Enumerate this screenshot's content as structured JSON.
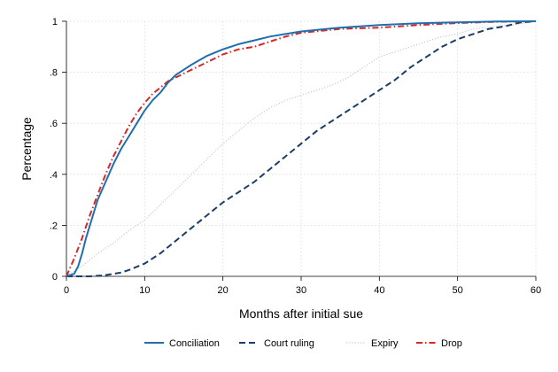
{
  "chart_data": {
    "type": "line",
    "title": "",
    "xlabel": "Months after initial sue",
    "ylabel": "Percentage",
    "xlim": [
      0,
      60
    ],
    "ylim": [
      0,
      1
    ],
    "xticks": [
      0,
      10,
      20,
      30,
      40,
      50,
      60
    ],
    "xtick_labels": [
      "0",
      "10",
      "20",
      "30",
      "40",
      "50",
      "60"
    ],
    "yticks": [
      0,
      0.2,
      0.4,
      0.6,
      0.8,
      1
    ],
    "ytick_labels": [
      "0",
      ".2",
      ".4",
      ".6",
      ".8",
      "1"
    ],
    "grid": true,
    "legend_position": "bottom",
    "series": [
      {
        "name": "Conciliation",
        "color": "#1f6fad",
        "dash": "solid",
        "x": [
          0,
          1,
          1.5,
          2,
          2.5,
          3,
          3.5,
          4,
          5,
          6,
          7,
          8,
          9,
          10,
          11,
          12,
          13,
          14,
          15,
          16,
          18,
          20,
          22,
          24,
          26,
          28,
          30,
          35,
          40,
          45,
          50,
          55,
          60
        ],
        "y": [
          0,
          0.01,
          0.04,
          0.09,
          0.15,
          0.2,
          0.25,
          0.3,
          0.37,
          0.44,
          0.5,
          0.55,
          0.6,
          0.65,
          0.69,
          0.72,
          0.76,
          0.79,
          0.81,
          0.83,
          0.865,
          0.89,
          0.91,
          0.925,
          0.94,
          0.95,
          0.96,
          0.975,
          0.985,
          0.992,
          0.996,
          0.999,
          1.0
        ]
      },
      {
        "name": "Court ruling",
        "color": "#1c3d66",
        "dash": "long-dash",
        "x": [
          0,
          3,
          5,
          7,
          8,
          10,
          12,
          14,
          16,
          18,
          20,
          22,
          24,
          26,
          28,
          30,
          32,
          34,
          36,
          38,
          40,
          42,
          44,
          46,
          48,
          50,
          52,
          54,
          56,
          58,
          60
        ],
        "y": [
          0,
          0.0,
          0.005,
          0.015,
          0.025,
          0.05,
          0.09,
          0.14,
          0.19,
          0.24,
          0.29,
          0.33,
          0.37,
          0.42,
          0.47,
          0.52,
          0.57,
          0.61,
          0.65,
          0.69,
          0.73,
          0.77,
          0.82,
          0.86,
          0.9,
          0.93,
          0.95,
          0.97,
          0.98,
          0.995,
          1.0
        ]
      },
      {
        "name": "Expiry",
        "color": "#c8c8c8",
        "dash": "dotted",
        "x": [
          0,
          2,
          4,
          6,
          8,
          10,
          12,
          14,
          16,
          18,
          20,
          22,
          24,
          26,
          28,
          30,
          32,
          34,
          36,
          38,
          40,
          42,
          44,
          46,
          48,
          50,
          52,
          55,
          58,
          60
        ],
        "y": [
          0,
          0.04,
          0.09,
          0.13,
          0.18,
          0.22,
          0.28,
          0.34,
          0.4,
          0.46,
          0.52,
          0.57,
          0.62,
          0.66,
          0.69,
          0.71,
          0.73,
          0.75,
          0.78,
          0.82,
          0.86,
          0.88,
          0.9,
          0.92,
          0.94,
          0.95,
          0.97,
          0.98,
          0.99,
          1.0
        ]
      },
      {
        "name": "Drop",
        "color": "#d62728",
        "dash": "dash-dot",
        "x": [
          0,
          1,
          2,
          3,
          4,
          5,
          6,
          7,
          8,
          9,
          10,
          11,
          12,
          13,
          14,
          16,
          18,
          20,
          22,
          24,
          26,
          28,
          30,
          35,
          40,
          45,
          50,
          55,
          60
        ],
        "y": [
          0,
          0.07,
          0.15,
          0.24,
          0.32,
          0.4,
          0.47,
          0.53,
          0.59,
          0.64,
          0.68,
          0.715,
          0.74,
          0.765,
          0.78,
          0.81,
          0.84,
          0.87,
          0.89,
          0.9,
          0.92,
          0.94,
          0.955,
          0.97,
          0.975,
          0.985,
          0.993,
          0.998,
          1.0
        ]
      }
    ]
  }
}
